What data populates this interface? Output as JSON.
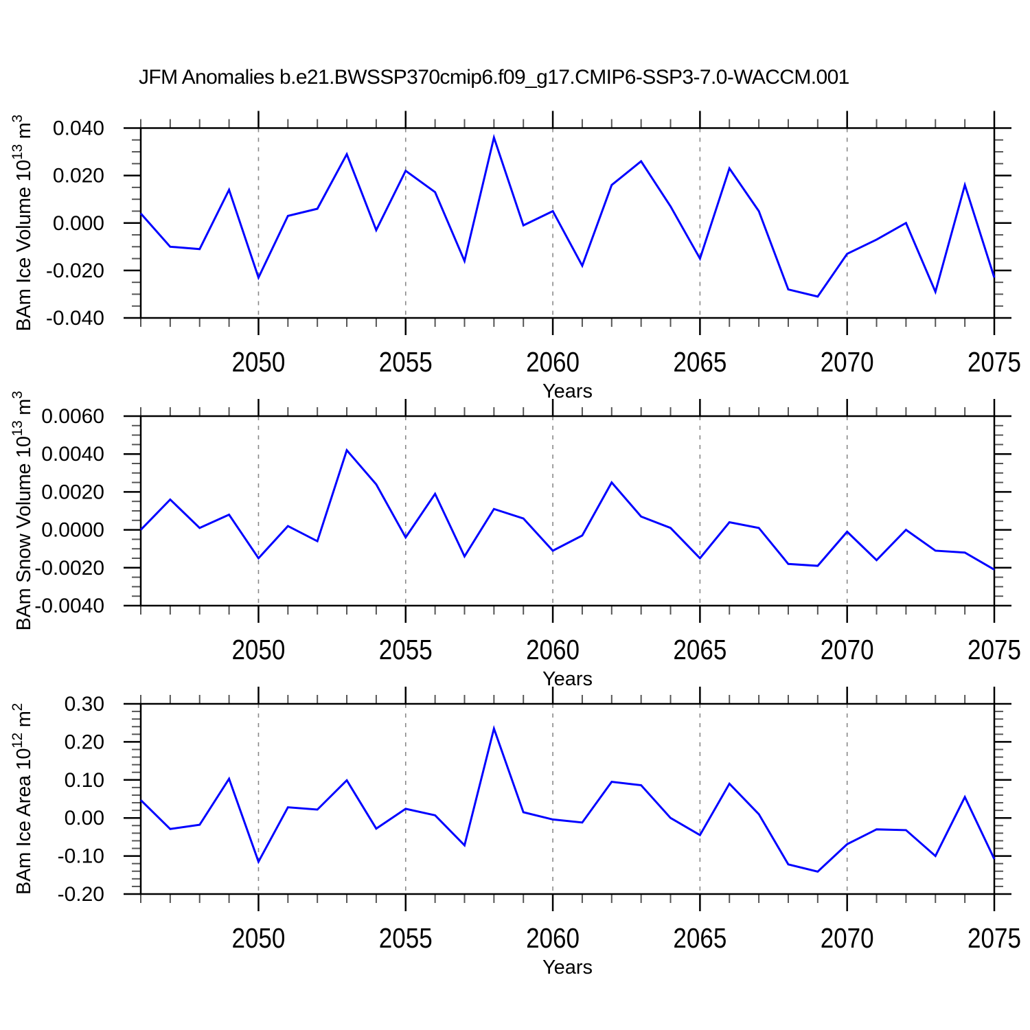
{
  "title": "JFM Anomalies b.e21.BWSSP370cmip6.f09_g17.CMIP6-SSP3-7.0-WACCM.001",
  "colors": {
    "line": "#0000ff",
    "axis": "#000000",
    "minor_tick": "#555555",
    "gridline": "#888888",
    "text": "#000000",
    "background": "#ffffff"
  },
  "x_axis": {
    "label": "Years",
    "xlim": [
      2046,
      2075
    ],
    "major_tick_values": [
      2050,
      2055,
      2060,
      2065,
      2070,
      2075
    ],
    "major_tick_labels": [
      "2050",
      "2055",
      "2060",
      "2065",
      "2070",
      "2075"
    ],
    "minor_step_years": 1,
    "gridlines_at": [
      2050,
      2055,
      2060,
      2065,
      2070
    ]
  },
  "chart_data": [
    {
      "type": "line",
      "panel": "ice-volume",
      "ylabel_text": "BAm Ice Volume 10^13 m^3",
      "ylabel_parts": [
        {
          "t": "BAm Ice Volume 10"
        },
        {
          "t": "13",
          "sup": true
        },
        {
          "t": " m"
        },
        {
          "t": "3",
          "sup": true
        }
      ],
      "xlabel": "Years",
      "ylim": [
        -0.04,
        0.04
      ],
      "y_major_tick_values": [
        0.04,
        0.02,
        0.0,
        -0.02,
        -0.04
      ],
      "y_major_tick_labels": [
        "0.040",
        "0.020",
        "0.000",
        "-0.020",
        "-0.040"
      ],
      "y_minor_step": 0.005,
      "grid": "vertical-dashed",
      "legend": "none",
      "x": [
        2046,
        2047,
        2048,
        2049,
        2050,
        2051,
        2052,
        2053,
        2054,
        2055,
        2056,
        2057,
        2058,
        2059,
        2060,
        2061,
        2062,
        2063,
        2064,
        2065,
        2066,
        2067,
        2068,
        2069,
        2070,
        2071,
        2072,
        2073,
        2074,
        2075
      ],
      "values": [
        0.004,
        -0.01,
        -0.011,
        0.014,
        -0.023,
        0.003,
        0.006,
        0.029,
        -0.003,
        0.022,
        0.013,
        -0.016,
        0.036,
        -0.001,
        0.005,
        -0.018,
        0.016,
        0.026,
        0.007,
        -0.015,
        0.023,
        0.005,
        -0.028,
        -0.031,
        -0.013,
        -0.007,
        0.0,
        -0.029,
        0.016,
        -0.023
      ]
    },
    {
      "type": "line",
      "panel": "snow-volume",
      "ylabel_text": "BAm Snow Volume 10^13 m^3",
      "ylabel_parts": [
        {
          "t": "BAm Snow Volume 10"
        },
        {
          "t": "13",
          "sup": true
        },
        {
          "t": " m"
        },
        {
          "t": "3",
          "sup": true
        }
      ],
      "xlabel": "Years",
      "ylim": [
        -0.004,
        0.006
      ],
      "y_major_tick_values": [
        0.006,
        0.004,
        0.002,
        0.0,
        -0.002,
        -0.004
      ],
      "y_major_tick_labels": [
        "0.0060",
        "0.0040",
        "0.0020",
        "0.0000",
        "-0.0020",
        "-0.0040"
      ],
      "y_minor_step": 0.0005,
      "grid": "vertical-dashed",
      "legend": "none",
      "x": [
        2046,
        2047,
        2048,
        2049,
        2050,
        2051,
        2052,
        2053,
        2054,
        2055,
        2056,
        2057,
        2058,
        2059,
        2060,
        2061,
        2062,
        2063,
        2064,
        2065,
        2066,
        2067,
        2068,
        2069,
        2070,
        2071,
        2072,
        2073,
        2074,
        2075
      ],
      "values": [
        0.0,
        0.0016,
        0.0001,
        0.0008,
        -0.0015,
        0.0002,
        -0.0006,
        0.0042,
        0.0024,
        -0.0004,
        0.0019,
        -0.0014,
        0.0011,
        0.0006,
        -0.0011,
        -0.0003,
        0.0025,
        0.0007,
        0.0001,
        -0.0015,
        0.0004,
        0.0001,
        -0.0018,
        -0.0019,
        -0.0001,
        -0.0016,
        0.0,
        -0.0011,
        -0.0012,
        -0.0021
      ]
    },
    {
      "type": "line",
      "panel": "ice-area",
      "ylabel_text": "BAm Ice Area 10^12 m^2",
      "ylabel_parts": [
        {
          "t": "BAm Ice Area 10"
        },
        {
          "t": "12",
          "sup": true
        },
        {
          "t": " m"
        },
        {
          "t": "2",
          "sup": true
        }
      ],
      "xlabel": "Years",
      "ylim": [
        -0.2,
        0.3
      ],
      "y_major_tick_values": [
        0.3,
        0.2,
        0.1,
        0.0,
        -0.1,
        -0.2
      ],
      "y_major_tick_labels": [
        "0.30",
        "0.20",
        "0.10",
        "0.00",
        "-0.10",
        "-0.20"
      ],
      "y_minor_step": 0.02,
      "grid": "vertical-dashed",
      "legend": "none",
      "x": [
        2046,
        2047,
        2048,
        2049,
        2050,
        2051,
        2052,
        2053,
        2054,
        2055,
        2056,
        2057,
        2058,
        2059,
        2060,
        2061,
        2062,
        2063,
        2064,
        2065,
        2066,
        2067,
        2068,
        2069,
        2070,
        2071,
        2072,
        2073,
        2074,
        2075
      ],
      "values": [
        0.047,
        -0.029,
        -0.018,
        0.103,
        -0.115,
        0.028,
        0.022,
        0.099,
        -0.028,
        0.024,
        0.007,
        -0.072,
        0.235,
        0.015,
        -0.004,
        -0.012,
        0.095,
        0.086,
        0.0,
        -0.045,
        0.09,
        0.01,
        -0.122,
        -0.141,
        -0.069,
        -0.03,
        -0.032,
        -0.1,
        0.055,
        -0.108
      ]
    }
  ]
}
